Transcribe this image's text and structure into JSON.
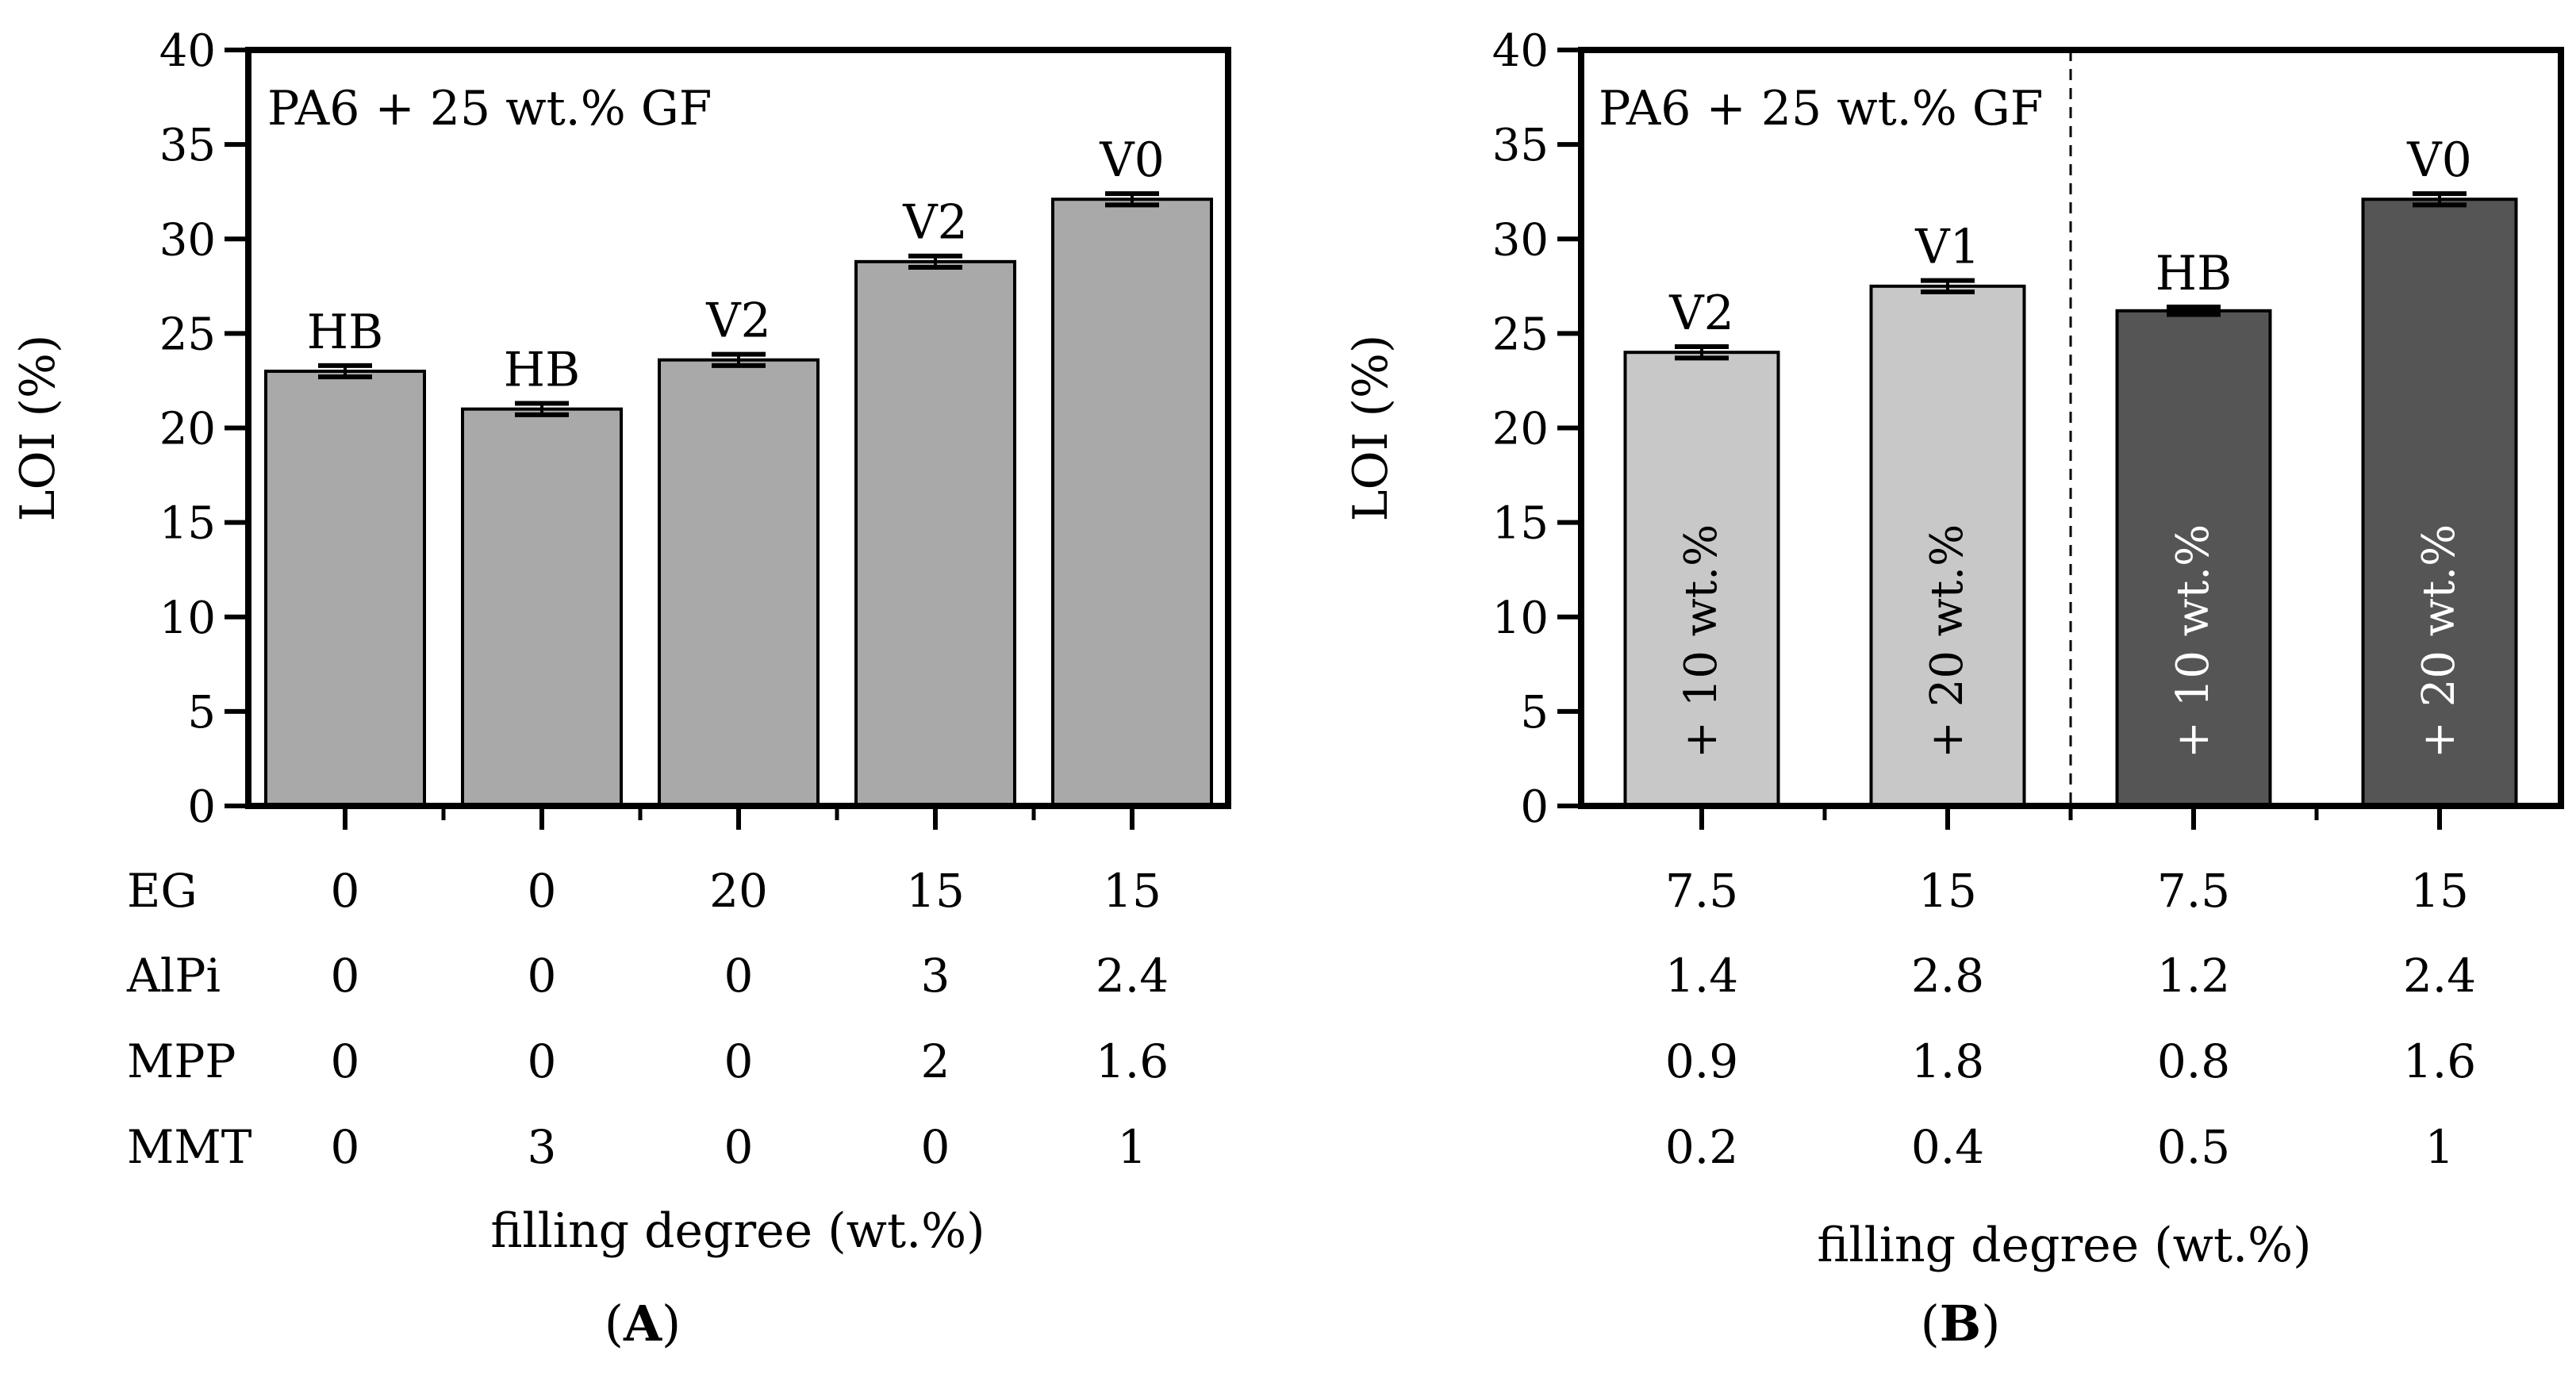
{
  "chart_data": [
    {
      "type": "bar",
      "panel_label": "A",
      "annotation": "PA6 + 25 wt.% GF",
      "ylabel": "LOI (%)",
      "xlabel": "filling degree (wt.%)",
      "ylim": [
        0,
        40
      ],
      "yticks": [
        "0",
        "5",
        "10",
        "15",
        "20",
        "25",
        "30",
        "35",
        "40"
      ],
      "table_rows": [
        {
          "label": "EG",
          "values": [
            "0",
            "0",
            "20",
            "15",
            "15"
          ]
        },
        {
          "label": "AlPi",
          "values": [
            "0",
            "0",
            "0",
            "3",
            "2.4"
          ]
        },
        {
          "label": "MPP",
          "values": [
            "0",
            "0",
            "0",
            "2",
            "1.6"
          ]
        },
        {
          "label": "MMT",
          "values": [
            "0",
            "3",
            "0",
            "0",
            "1"
          ]
        }
      ],
      "bars": [
        {
          "value": 23.0,
          "error": 0.3,
          "label": "HB",
          "inner_label": "",
          "color": "#a9a9a9"
        },
        {
          "value": 21.0,
          "error": 0.3,
          "label": "HB",
          "inner_label": "",
          "color": "#a9a9a9"
        },
        {
          "value": 23.6,
          "error": 0.3,
          "label": "V2",
          "inner_label": "",
          "color": "#a9a9a9"
        },
        {
          "value": 28.8,
          "error": 0.3,
          "label": "V2",
          "inner_label": "",
          "color": "#a9a9a9"
        },
        {
          "value": 32.1,
          "error": 0.3,
          "label": "V0",
          "inner_label": "",
          "color": "#a9a9a9"
        }
      ],
      "divider_after_index": null
    },
    {
      "type": "bar",
      "panel_label": "B",
      "annotation": "PA6 + 25 wt.% GF",
      "ylabel": "LOI (%)",
      "xlabel": "filling degree (wt.%)",
      "ylim": [
        0,
        40
      ],
      "yticks": [
        "0",
        "5",
        "10",
        "15",
        "20",
        "25",
        "30",
        "35",
        "40"
      ],
      "table_rows": [
        {
          "label": "",
          "values": [
            "7.5",
            "15",
            "7.5",
            "15"
          ]
        },
        {
          "label": "",
          "values": [
            "1.4",
            "2.8",
            "1.2",
            "2.4"
          ]
        },
        {
          "label": "",
          "values": [
            "0.9",
            "1.8",
            "0.8",
            "1.6"
          ]
        },
        {
          "label": "",
          "values": [
            "0.2",
            "0.4",
            "0.5",
            "1"
          ]
        }
      ],
      "bars": [
        {
          "value": 24.0,
          "error": 0.3,
          "label": "V2",
          "inner_label": "+ 10 wt.%",
          "color": "#c8c8c8"
        },
        {
          "value": 27.5,
          "error": 0.3,
          "label": "V1",
          "inner_label": "+ 20 wt.%",
          "color": "#c8c8c8"
        },
        {
          "value": 26.2,
          "error": 0.2,
          "label": "HB",
          "inner_label": "+ 10 wt.%",
          "color": "#555555"
        },
        {
          "value": 32.1,
          "error": 0.3,
          "label": "V0",
          "inner_label": "+ 20 wt.%",
          "color": "#555555"
        }
      ],
      "divider_after_index": 1
    }
  ]
}
